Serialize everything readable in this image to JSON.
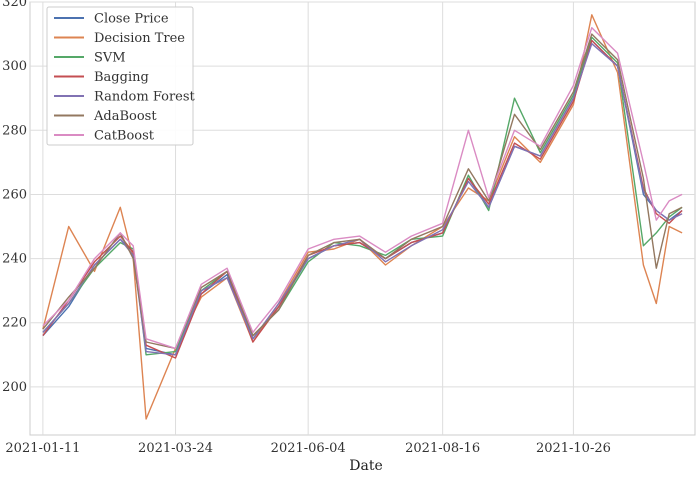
{
  "chart_data": {
    "type": "line",
    "title": "",
    "xlabel": "Date",
    "ylabel": "",
    "x_ticks": [
      "2021-01-11",
      "2021-03-24",
      "2021-06-04",
      "2021-08-16",
      "2021-10-26"
    ],
    "y_ticks": [
      200,
      220,
      240,
      260,
      280,
      300,
      320
    ],
    "xlim": [
      "2021-01-04",
      "2021-12-31"
    ],
    "ylim": [
      185,
      320
    ],
    "grid": true,
    "legend_position": "top-left",
    "x": [
      "2021-01-11",
      "2021-01-25",
      "2021-02-08",
      "2021-02-22",
      "2021-03-01",
      "2021-03-08",
      "2021-03-24",
      "2021-04-07",
      "2021-04-21",
      "2021-05-05",
      "2021-05-19",
      "2021-06-04",
      "2021-06-18",
      "2021-07-02",
      "2021-07-16",
      "2021-07-30",
      "2021-08-16",
      "2021-08-30",
      "2021-09-10",
      "2021-09-24",
      "2021-10-08",
      "2021-10-26",
      "2021-11-05",
      "2021-11-19",
      "2021-12-03",
      "2021-12-10",
      "2021-12-17",
      "2021-12-24"
    ],
    "series": [
      {
        "name": "Close Price",
        "color": "#4c72b0",
        "values": [
          216,
          225,
          238,
          246,
          242,
          212,
          210,
          229,
          235,
          215,
          225,
          240,
          244,
          245,
          240,
          245,
          248,
          265,
          256,
          275,
          272,
          290,
          308,
          300,
          260,
          255,
          252,
          255
        ]
      },
      {
        "name": "Decision Tree",
        "color": "#dd8452",
        "values": [
          218,
          250,
          236,
          256,
          240,
          190,
          212,
          228,
          234,
          214,
          226,
          242,
          243,
          246,
          238,
          244,
          250,
          262,
          258,
          278,
          270,
          288,
          316,
          298,
          238,
          226,
          250,
          248
        ]
      },
      {
        "name": "SVM",
        "color": "#55a868",
        "values": [
          217,
          226,
          237,
          245,
          243,
          210,
          211,
          230,
          236,
          216,
          224,
          239,
          245,
          244,
          241,
          246,
          247,
          266,
          255,
          290,
          273,
          291,
          309,
          301,
          244,
          248,
          253,
          256
        ]
      },
      {
        "name": "Bagging",
        "color": "#c44e52",
        "values": [
          216,
          227,
          239,
          247,
          242,
          213,
          209,
          229,
          236,
          214,
          225,
          241,
          244,
          245,
          240,
          245,
          248,
          265,
          257,
          276,
          271,
          289,
          308,
          300,
          262,
          254,
          251,
          255
        ]
      },
      {
        "name": "Random Forest",
        "color": "#8172b3",
        "values": [
          217,
          226,
          238,
          246,
          241,
          211,
          210,
          230,
          234,
          215,
          226,
          240,
          244,
          246,
          239,
          244,
          249,
          264,
          256,
          275,
          272,
          290,
          307,
          300,
          261,
          255,
          252,
          254
        ]
      },
      {
        "name": "AdaBoost",
        "color": "#937860",
        "values": [
          218,
          228,
          237,
          248,
          240,
          214,
          212,
          231,
          236,
          216,
          224,
          241,
          245,
          246,
          240,
          246,
          250,
          268,
          258,
          285,
          274,
          292,
          310,
          302,
          265,
          237,
          254,
          256
        ]
      },
      {
        "name": "CatBoost",
        "color": "#da8bc3",
        "values": [
          219,
          227,
          240,
          248,
          244,
          215,
          212,
          232,
          237,
          217,
          227,
          243,
          246,
          247,
          242,
          247,
          251,
          280,
          259,
          280,
          275,
          294,
          312,
          304,
          270,
          252,
          258,
          260
        ]
      }
    ]
  }
}
